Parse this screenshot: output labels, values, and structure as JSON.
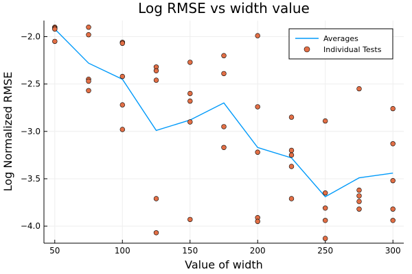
{
  "chart_data": {
    "type": "scatter",
    "title": "Log RMSE vs width value",
    "xlabel": "Value of width",
    "ylabel": "Log Normalized RMSE",
    "xlim": [
      42,
      308
    ],
    "ylim": [
      -4.18,
      -1.83
    ],
    "x_ticks": [
      50,
      100,
      150,
      200,
      250,
      300
    ],
    "x_tick_labels": [
      "50",
      "100",
      "150",
      "200",
      "250",
      "300"
    ],
    "y_ticks": [
      -2.0,
      -2.5,
      -3.0,
      -3.5,
      -4.0
    ],
    "y_tick_labels": [
      "−2.0",
      "−2.5",
      "−3.0",
      "−3.5",
      "−4.0"
    ],
    "grid": true,
    "legend_position": "top-right",
    "colors": {
      "averages": "#009AFA",
      "individual": "#E26F46",
      "marker_edge": "#000000",
      "grid": "#eeeeee",
      "axis": "#000000"
    },
    "series": [
      {
        "name": "Averages",
        "type": "line",
        "x": [
          50,
          75,
          100,
          125,
          150,
          175,
          200,
          225,
          250,
          275,
          300
        ],
        "y": [
          -1.92,
          -2.28,
          -2.45,
          -2.99,
          -2.88,
          -2.7,
          -3.17,
          -3.28,
          -3.69,
          -3.49,
          -3.44
        ]
      },
      {
        "name": "Individual Tests",
        "type": "scatter",
        "points": [
          [
            50,
            -1.9
          ],
          [
            50,
            -1.91
          ],
          [
            50,
            -1.92
          ],
          [
            50,
            -2.05
          ],
          [
            75,
            -1.9
          ],
          [
            75,
            -1.98
          ],
          [
            75,
            -2.45
          ],
          [
            75,
            -2.47
          ],
          [
            75,
            -2.57
          ],
          [
            100,
            -2.06
          ],
          [
            100,
            -2.07
          ],
          [
            100,
            -2.42
          ],
          [
            100,
            -2.72
          ],
          [
            100,
            -2.98
          ],
          [
            125,
            -2.32
          ],
          [
            125,
            -2.36
          ],
          [
            125,
            -2.46
          ],
          [
            125,
            -3.71
          ],
          [
            125,
            -4.07
          ],
          [
            150,
            -2.27
          ],
          [
            150,
            -2.6
          ],
          [
            150,
            -2.68
          ],
          [
            150,
            -2.9
          ],
          [
            150,
            -3.93
          ],
          [
            175,
            -2.2
          ],
          [
            175,
            -2.39
          ],
          [
            175,
            -2.95
          ],
          [
            175,
            -3.17
          ],
          [
            200,
            -1.99
          ],
          [
            200,
            -2.74
          ],
          [
            200,
            -3.22
          ],
          [
            200,
            -3.91
          ],
          [
            200,
            -3.95
          ],
          [
            225,
            -2.85
          ],
          [
            225,
            -3.2
          ],
          [
            225,
            -3.25
          ],
          [
            225,
            -3.37
          ],
          [
            225,
            -3.71
          ],
          [
            250,
            -2.89
          ],
          [
            250,
            -3.65
          ],
          [
            250,
            -3.81
          ],
          [
            250,
            -3.94
          ],
          [
            250,
            -4.13
          ],
          [
            275,
            -2.55
          ],
          [
            275,
            -3.62
          ],
          [
            275,
            -3.68
          ],
          [
            275,
            -3.74
          ],
          [
            275,
            -3.82
          ],
          [
            300,
            -2.76
          ],
          [
            300,
            -3.13
          ],
          [
            300,
            -3.52
          ],
          [
            300,
            -3.82
          ],
          [
            300,
            -3.94
          ]
        ]
      }
    ]
  }
}
